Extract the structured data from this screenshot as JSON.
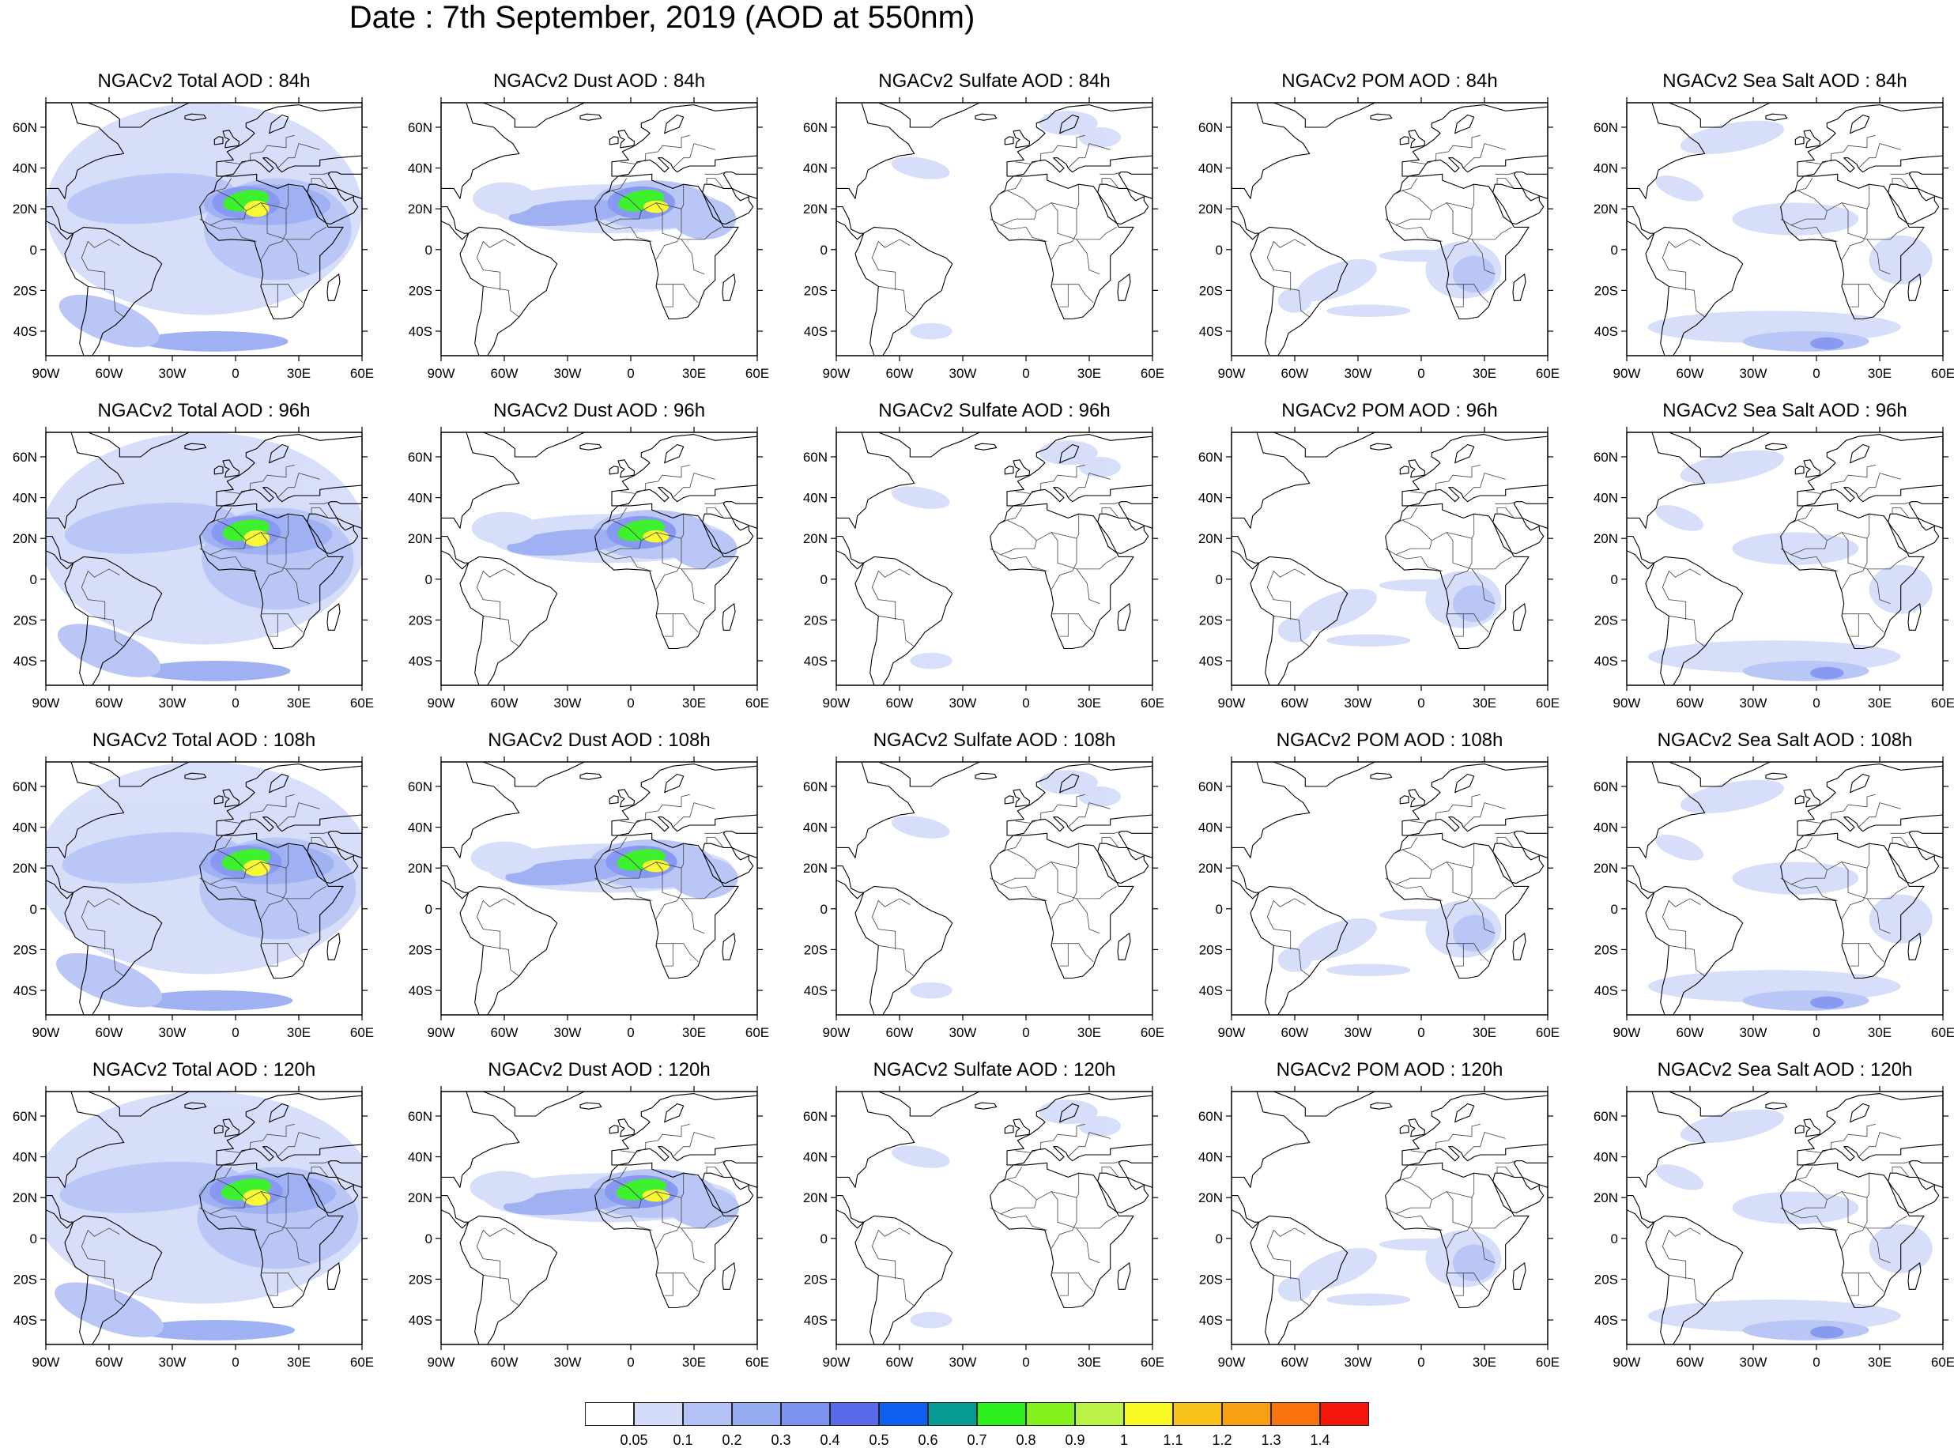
{
  "figure": {
    "title": "Date : 7th September, 2019 (AOD at 550nm)"
  },
  "axes": {
    "lon_labels": [
      "90W",
      "60W",
      "30W",
      "0",
      "30E",
      "60E"
    ],
    "lat_labels": [
      "60N",
      "40N",
      "20N",
      "0",
      "20S",
      "40S"
    ],
    "lon_range": [
      -90,
      60
    ],
    "lat_range": [
      -52,
      72
    ]
  },
  "rows": [
    {
      "hour": "84h",
      "titles": [
        "NGACv2 Total AOD : 84h",
        "NGACv2 Dust AOD : 84h",
        "NGACv2 Sulfate AOD : 84h",
        "NGACv2 POM AOD : 84h",
        "NGACv2 Sea Salt AOD : 84h"
      ]
    },
    {
      "hour": "96h",
      "titles": [
        "NGACv2 Total AOD : 96h",
        "NGACv2 Dust AOD : 96h",
        "NGACv2 Sulfate AOD : 96h",
        "NGACv2 POM AOD : 96h",
        "NGACv2 Sea Salt AOD : 96h"
      ]
    },
    {
      "hour": "108h",
      "titles": [
        "NGACv2 Total AOD : 108h",
        "NGACv2 Dust AOD : 108h",
        "NGACv2 Sulfate AOD : 108h",
        "NGACv2 POM AOD : 108h",
        "NGACv2 Sea Salt AOD : 108h"
      ]
    },
    {
      "hour": "120h",
      "titles": [
        "NGACv2 Total AOD : 120h",
        "NGACv2 Dust AOD : 120h",
        "NGACv2 Sulfate AOD : 120h",
        "NGACv2 POM AOD : 120h",
        "NGACv2 Sea Salt  AOD : 120h"
      ]
    }
  ],
  "species": [
    "total",
    "dust",
    "sulfate",
    "pom",
    "seasalt"
  ],
  "colorbar": {
    "labels": [
      "0.05",
      "0.1",
      "0.2",
      "0.3",
      "0.4",
      "0.5",
      "0.6",
      "0.7",
      "0.8",
      "0.9",
      "1",
      "1.1",
      "1.2",
      "1.3",
      "1.4"
    ],
    "colors": [
      "#ffffff",
      "#d4dcfa",
      "#b4c2f6",
      "#97abf3",
      "#7d91ef",
      "#5a69ea",
      "#0f5ff0",
      "#079a94",
      "#2ef01e",
      "#84f01c",
      "#baf245",
      "#f8f823",
      "#f8c21a",
      "#f7a112",
      "#f8730e",
      "#f6170c"
    ]
  },
  "colors": {
    "coastline": "#000000",
    "border": "#404040",
    "frame": "#000000"
  }
}
